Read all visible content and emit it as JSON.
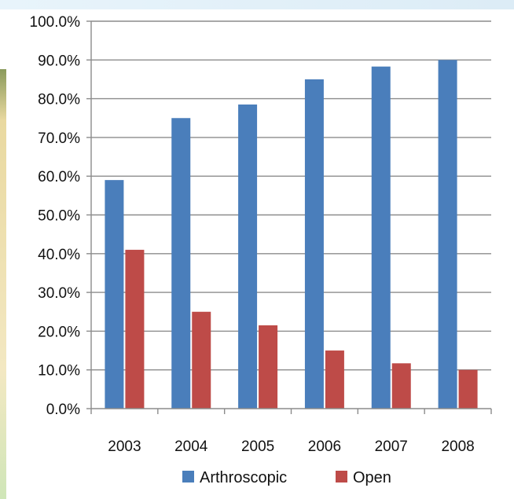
{
  "chart_data": {
    "type": "bar",
    "categories": [
      "2003",
      "2004",
      "2005",
      "2006",
      "2007",
      "2008"
    ],
    "series": [
      {
        "name": "Arthroscopic",
        "color": "#4a7ebb",
        "values": [
          59.0,
          75.0,
          78.5,
          85.0,
          88.3,
          90.0
        ]
      },
      {
        "name": "Open",
        "color": "#be4b48",
        "values": [
          41.0,
          25.0,
          21.5,
          15.0,
          11.7,
          10.0
        ]
      }
    ],
    "ylim": [
      0,
      100
    ],
    "ytick_step": 10,
    "ytick_labels": [
      "0.0%",
      "10.0%",
      "20.0%",
      "30.0%",
      "40.0%",
      "50.0%",
      "60.0%",
      "70.0%",
      "80.0%",
      "90.0%",
      "100.0%"
    ],
    "grid": true,
    "legend_position": "bottom",
    "title": "",
    "xlabel": "",
    "ylabel": ""
  }
}
